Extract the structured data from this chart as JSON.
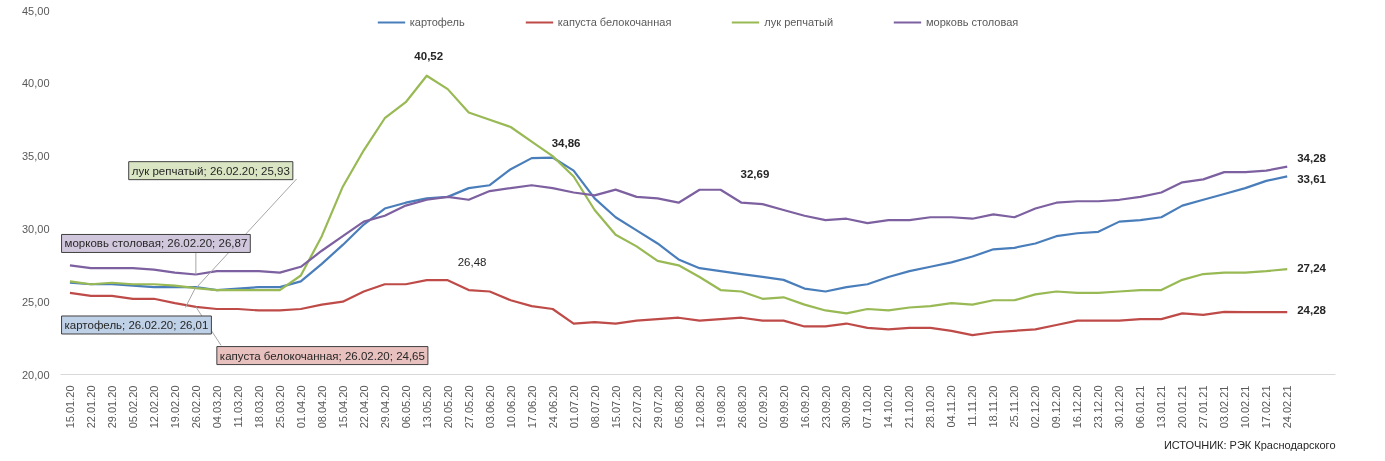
{
  "chart_data": {
    "type": "line",
    "categories": [
      "15.01.20",
      "22.01.20",
      "29.01.20",
      "05.02.20",
      "12.02.20",
      "19.02.20",
      "26.02.20",
      "04.03.20",
      "11.03.20",
      "18.03.20",
      "25.03.20",
      "01.04.20",
      "08.04.20",
      "15.04.20",
      "22.04.20",
      "29.04.20",
      "06.05.20",
      "13.05.20",
      "20.05.20",
      "27.05.20",
      "03.06.20",
      "10.06.20",
      "17.06.20",
      "24.06.20",
      "01.07.20",
      "08.07.20",
      "15.07.20",
      "22.07.20",
      "29.07.20",
      "05.08.20",
      "12.08.20",
      "19.08.20",
      "26.08.20",
      "02.09.20",
      "09.09.20",
      "16.09.20",
      "23.09.20",
      "30.09.20",
      "07.10.20",
      "14.10.20",
      "21.10.20",
      "28.10.20",
      "04.11.20",
      "11.11.20",
      "18.11.20",
      "25.11.20",
      "02.12.20",
      "09.12.20",
      "16.12.20",
      "23.12.20",
      "30.12.20",
      "06.01.21",
      "13.01.21",
      "20.01.21",
      "27.01.21",
      "03.02.21",
      "10.02.21",
      "17.02.21",
      "24.02.21"
    ],
    "series": [
      {
        "name": "картофель",
        "color": "#4a7ebb",
        "values": [
          26.3,
          26.2,
          26.2,
          26.1,
          26.0,
          26.0,
          26.01,
          25.8,
          25.9,
          26.0,
          26.0,
          26.4,
          27.6,
          28.9,
          30.3,
          31.4,
          31.8,
          32.1,
          32.2,
          32.8,
          33.0,
          34.1,
          34.86,
          34.9,
          34.0,
          32.1,
          30.8,
          29.9,
          29.0,
          27.9,
          27.3,
          27.1,
          26.9,
          26.7,
          26.5,
          25.9,
          25.7,
          26.0,
          26.2,
          26.7,
          27.1,
          27.4,
          27.7,
          28.1,
          28.6,
          28.7,
          29.0,
          29.5,
          29.7,
          29.8,
          30.5,
          30.6,
          30.8,
          31.6,
          32.0,
          32.4,
          32.8,
          33.3,
          33.61
        ]
      },
      {
        "name": "капуста белокочанная",
        "color": "#be4b48",
        "values": [
          25.6,
          25.4,
          25.4,
          25.2,
          25.2,
          24.9,
          24.65,
          24.5,
          24.5,
          24.4,
          24.4,
          24.5,
          24.8,
          25.0,
          25.7,
          26.2,
          26.2,
          26.48,
          26.48,
          25.8,
          25.7,
          25.1,
          24.7,
          24.5,
          23.5,
          23.6,
          23.5,
          23.7,
          23.8,
          23.9,
          23.7,
          23.8,
          23.9,
          23.7,
          23.7,
          23.3,
          23.3,
          23.5,
          23.2,
          23.1,
          23.2,
          23.2,
          23.0,
          22.7,
          22.9,
          23.0,
          23.1,
          23.4,
          23.7,
          23.7,
          23.7,
          23.8,
          23.8,
          24.2,
          24.1,
          24.3,
          24.28,
          24.28,
          24.28
        ]
      },
      {
        "name": "лук репчатый",
        "color": "#98b954",
        "values": [
          26.4,
          26.2,
          26.3,
          26.2,
          26.2,
          26.1,
          25.93,
          25.8,
          25.8,
          25.8,
          25.8,
          26.8,
          29.5,
          32.9,
          35.4,
          37.6,
          38.7,
          40.52,
          39.6,
          38.0,
          37.5,
          37.0,
          36.0,
          35.0,
          33.6,
          31.3,
          29.6,
          28.8,
          27.8,
          27.5,
          26.7,
          25.8,
          25.7,
          25.2,
          25.3,
          24.8,
          24.4,
          24.2,
          24.5,
          24.4,
          24.6,
          24.7,
          24.9,
          24.8,
          25.1,
          25.1,
          25.5,
          25.7,
          25.6,
          25.6,
          25.7,
          25.8,
          25.8,
          26.5,
          26.9,
          27.0,
          27.0,
          27.1,
          27.24
        ]
      },
      {
        "name": "морковь столовая",
        "color": "#7d60a0",
        "values": [
          27.5,
          27.3,
          27.3,
          27.3,
          27.2,
          27.0,
          26.87,
          27.1,
          27.1,
          27.1,
          27.0,
          27.4,
          28.5,
          29.5,
          30.5,
          30.9,
          31.6,
          32.0,
          32.2,
          32.0,
          32.6,
          32.8,
          33.0,
          32.8,
          32.5,
          32.3,
          32.7,
          32.2,
          32.1,
          31.8,
          32.69,
          32.69,
          31.8,
          31.7,
          31.3,
          30.9,
          30.6,
          30.7,
          30.4,
          30.6,
          30.6,
          30.8,
          30.8,
          30.7,
          31.0,
          30.8,
          31.4,
          31.8,
          31.9,
          31.9,
          32.0,
          32.2,
          32.5,
          33.2,
          33.4,
          33.9,
          33.9,
          34.0,
          34.28
        ]
      }
    ],
    "ylim": [
      20,
      45
    ],
    "yticks": [
      {
        "value": 20,
        "label": "20,00"
      },
      {
        "value": 25,
        "label": "25,00"
      },
      {
        "value": 30,
        "label": "30,00"
      },
      {
        "value": 35,
        "label": "35,00"
      },
      {
        "value": 40,
        "label": "40,00"
      },
      {
        "value": 45,
        "label": "45,00"
      }
    ],
    "grid": false,
    "legend": "top",
    "marker": "none",
    "line_style": "solid",
    "annotations": [
      {
        "text": "лук репчатый; 26.02.20; 25,93",
        "x": "26.02.20",
        "y": 25.93
      },
      {
        "text": "морковь столовая; 26.02.20; 26,87",
        "x": "26.02.20",
        "y": 26.87
      },
      {
        "text": "картофель; 26.02.20; 26,01",
        "x": "26.02.20",
        "y": 26.01
      },
      {
        "text": "капуста белокочанная; 26.02.20; 24,65",
        "x": "26.02.20",
        "y": 24.65
      },
      {
        "text": "40,52",
        "x": "13.05.20",
        "y": 40.52
      },
      {
        "text": "26,48",
        "x": "20.05.20",
        "y": 26.48
      },
      {
        "text": "34,86",
        "x": "17.06.20",
        "y": 34.86
      },
      {
        "text": "32,69",
        "x": "19.08.20",
        "y": 32.69
      },
      {
        "text": "34,28",
        "x": "24.02.21",
        "y": 34.28
      },
      {
        "text": "33,61",
        "x": "24.02.21",
        "y": 33.61
      },
      {
        "text": "27,24",
        "x": "24.02.21",
        "y": 27.24
      },
      {
        "text": "24,28",
        "x": "24.02.21",
        "y": 24.28
      },
      "ИСТОЧНИК: РЭК Краснодарского"
    ]
  }
}
